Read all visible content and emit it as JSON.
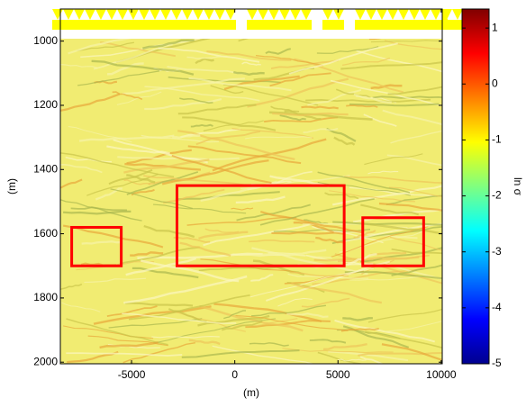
{
  "chart_data": {
    "type": "image",
    "xlabel": "(m)",
    "ylabel": "(m)",
    "xlim": [
      -8450,
      10050
    ],
    "xticks": [
      -5000,
      0,
      5000,
      10000
    ],
    "ylim": [
      900,
      2005
    ],
    "yticks": [
      1000,
      1200,
      1400,
      1600,
      1800,
      2000
    ],
    "y_reversed": true,
    "colormap": "jet",
    "clim": [
      -5,
      1.34
    ],
    "cticks": [
      -5,
      -4,
      -3,
      -2,
      -1,
      0,
      1
    ],
    "colorbar_label": "ln σ",
    "box_color": "#ff0000",
    "boxes": [
      [
        -7900,
        -5500,
        1580,
        1700
      ],
      [
        -2800,
        5300,
        1450,
        1700
      ],
      [
        6200,
        9150,
        1550,
        1700
      ]
    ]
  }
}
